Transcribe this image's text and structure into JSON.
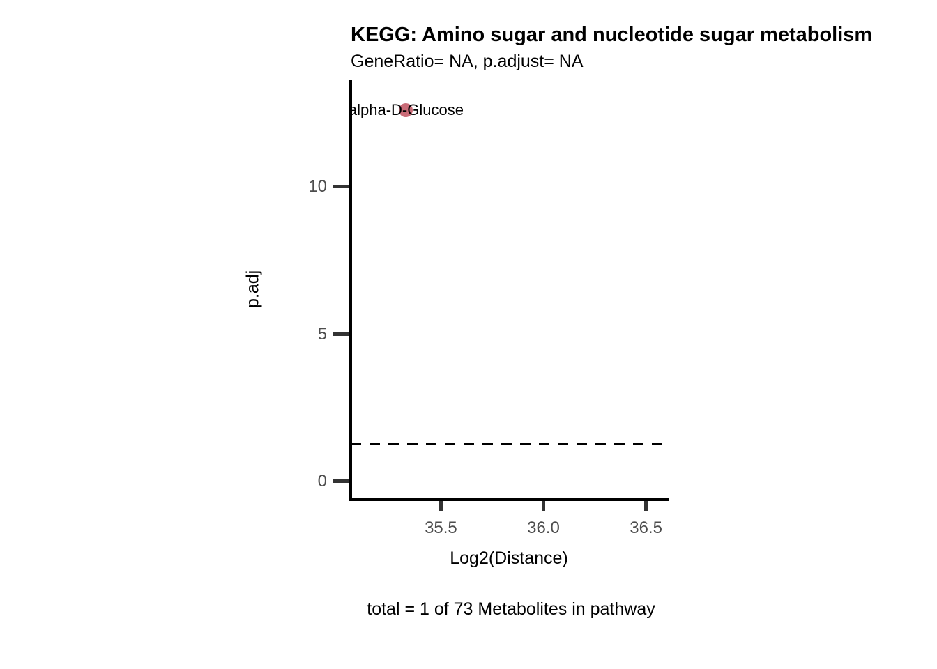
{
  "chart_data": {
    "type": "scatter",
    "title": "KEGG: Amino sugar and nucleotide sugar metabolism",
    "subtitle": "GeneRatio= NA, p.adjust= NA",
    "xlabel": "Log2(Distance)",
    "ylabel": "p.adj",
    "caption": "total = 1 of 73 Metabolites in pathway",
    "points": [
      {
        "label": "alpha-D-Glucose",
        "x": 35.33,
        "y": 12.6
      }
    ],
    "point_color": "#c96b77",
    "point_label_color": "#000000",
    "hline": {
      "y": 1.3,
      "style": "dashed",
      "color": "#000000"
    },
    "x_ticks": [
      {
        "value": 35.5,
        "label": "35.5"
      },
      {
        "value": 36.0,
        "label": "36.0"
      },
      {
        "value": 36.5,
        "label": "36.5"
      }
    ],
    "y_ticks": [
      {
        "value": 0,
        "label": "0"
      },
      {
        "value": 5,
        "label": "5"
      },
      {
        "value": 10,
        "label": "10"
      }
    ],
    "xlim": [
      35.06,
      36.6
    ],
    "ylim": [
      -0.61,
      13.62
    ],
    "grid": false,
    "legend": "none",
    "axis_color": "#000000",
    "tick_color": "#333333",
    "tick_label_color": "#4d4d4d",
    "background": "#ffffff"
  }
}
